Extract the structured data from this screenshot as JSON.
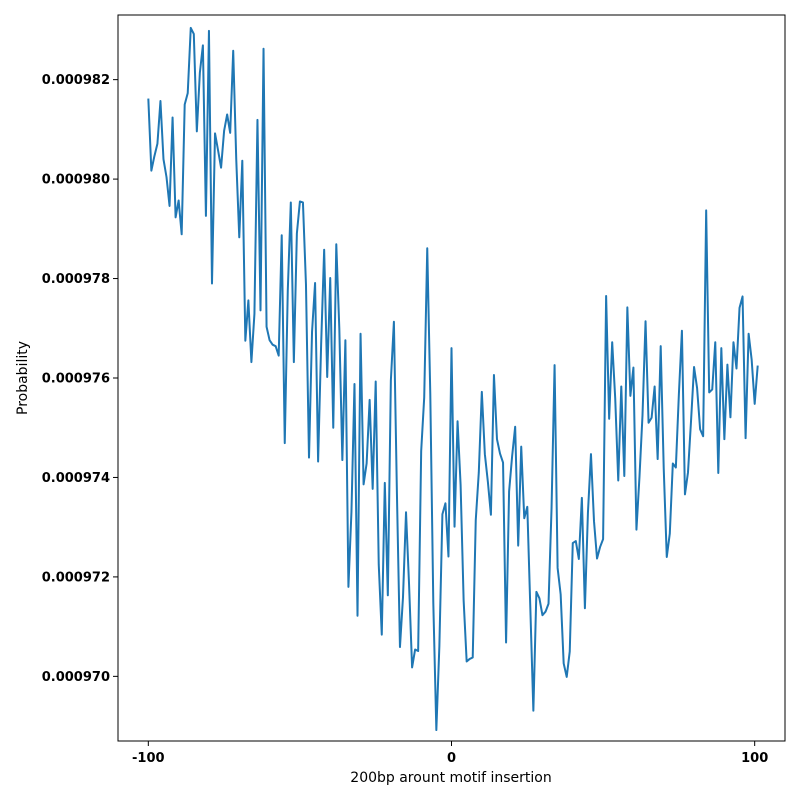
{
  "chart_data": {
    "type": "line",
    "title": "",
    "xlabel": "200bp arount motif insertion",
    "ylabel": "Probability",
    "xlim": [
      -110,
      110
    ],
    "ylim": [
      0.0009687,
      0.0009833
    ],
    "xticks": [
      -100,
      0,
      100
    ],
    "xtick_labels": [
      "-100",
      "0",
      "100"
    ],
    "yticks": [
      0.00097,
      0.000972,
      0.000974,
      0.000976,
      0.000978,
      0.00098,
      0.000982
    ],
    "ytick_labels": [
      "0.000970",
      "0.000972",
      "0.000974",
      "0.000976",
      "0.000978",
      "0.000980",
      "0.000982"
    ],
    "grid": false,
    "line_color": "#1f77b4",
    "series": [
      {
        "x_start": -100,
        "x_step": 1,
        "values": [
          0.00098162,
          0.00098017,
          0.00098046,
          0.00098071,
          0.00098157,
          0.0009804,
          0.00098004,
          0.00097946,
          0.00098124,
          0.00097923,
          0.00097957,
          0.00097889,
          0.0009815,
          0.00098173,
          0.00098304,
          0.00098292,
          0.00098096,
          0.00098214,
          0.00098269,
          0.00097926,
          0.00098298,
          0.0009779,
          0.00098092,
          0.00098058,
          0.00098023,
          0.00098097,
          0.0009813,
          0.00098093,
          0.00098258,
          0.0009804,
          0.00097883,
          0.00098037,
          0.00097675,
          0.00097756,
          0.00097632,
          0.00097729,
          0.00098119,
          0.00097736,
          0.00098262,
          0.00097703,
          0.00097676,
          0.00097667,
          0.00097664,
          0.00097645,
          0.00097887,
          0.00097469,
          0.00097776,
          0.00097953,
          0.00097632,
          0.00097891,
          0.00097955,
          0.00097953,
          0.00097788,
          0.0009744,
          0.00097693,
          0.00097791,
          0.00097432,
          0.00097667,
          0.00097858,
          0.00097602,
          0.00097801,
          0.000975,
          0.00097869,
          0.00097699,
          0.00097435,
          0.00097676,
          0.0009718,
          0.00097331,
          0.00097588,
          0.00097122,
          0.00097689,
          0.00097386,
          0.00097428,
          0.00097556,
          0.00097377,
          0.00097593,
          0.00097225,
          0.00097084,
          0.00097389,
          0.00097163,
          0.00097595,
          0.00097713,
          0.00097367,
          0.00097059,
          0.00097159,
          0.0009733,
          0.00097185,
          0.00097018,
          0.00097054,
          0.00097051,
          0.00097453,
          0.00097561,
          0.00097861,
          0.00097568,
          0.00097147,
          0.00096892,
          0.00097061,
          0.00097326,
          0.00097348,
          0.00097241,
          0.0009766,
          0.00097301,
          0.00097513,
          0.00097385,
          0.00097153,
          0.0009703,
          0.00097035,
          0.00097038,
          0.00097314,
          0.0009741,
          0.00097572,
          0.00097447,
          0.00097391,
          0.00097325,
          0.00097606,
          0.00097477,
          0.00097448,
          0.0009743,
          0.00097068,
          0.00097372,
          0.00097443,
          0.00097502,
          0.00097263,
          0.00097462,
          0.00097318,
          0.00097341,
          0.00097137,
          0.00096931,
          0.0009717,
          0.00097157,
          0.00097123,
          0.0009713,
          0.00097146,
          0.00097338,
          0.00097626,
          0.00097218,
          0.00097165,
          0.00097026,
          0.00096999,
          0.0009705,
          0.00097268,
          0.00097272,
          0.00097236,
          0.00097359,
          0.00097137,
          0.00097329,
          0.00097447,
          0.00097312,
          0.00097237,
          0.0009726,
          0.00097276,
          0.00097765,
          0.00097518,
          0.00097672,
          0.00097559,
          0.00097394,
          0.00097583,
          0.00097403,
          0.00097742,
          0.00097564,
          0.00097621,
          0.00097295,
          0.00097401,
          0.00097525,
          0.00097714,
          0.0009751,
          0.0009752,
          0.00097583,
          0.00097437,
          0.00097664,
          0.00097418,
          0.0009724,
          0.00097287,
          0.00097428,
          0.0009742,
          0.00097568,
          0.00097695,
          0.00097366,
          0.0009741,
          0.00097513,
          0.00097622,
          0.0009758,
          0.00097497,
          0.00097483,
          0.00097937,
          0.00097571,
          0.00097577,
          0.00097672,
          0.00097409,
          0.0009766,
          0.00097477,
          0.00097627,
          0.00097521,
          0.00097672,
          0.00097619,
          0.00097741,
          0.00097764,
          0.00097479,
          0.00097689,
          0.00097637,
          0.00097548,
          0.00097625
        ]
      }
    ]
  }
}
